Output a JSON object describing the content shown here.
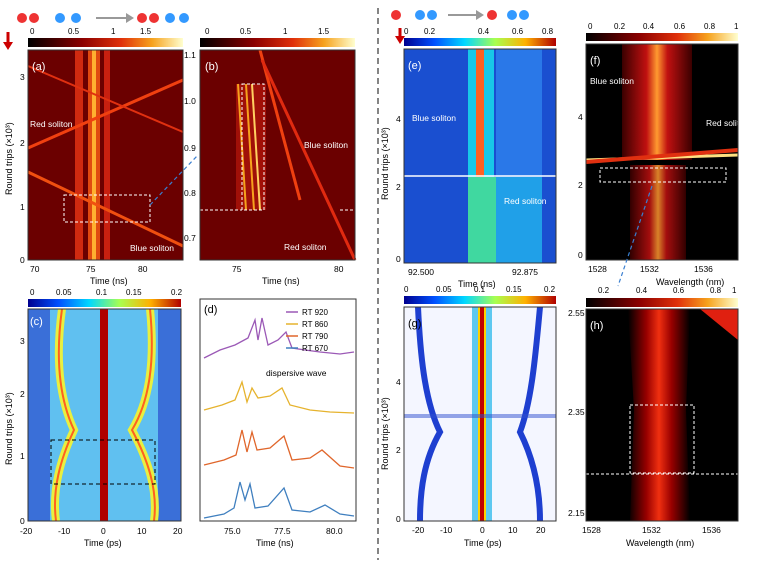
{
  "figure": {
    "panels": {
      "a": {
        "label": "(a)",
        "xlabel": "Time (ns)",
        "xticks": [
          "70",
          "75",
          "80"
        ],
        "ylabel": "Round trips (×10³)",
        "yticks": [
          "0",
          "1",
          "2",
          "3"
        ],
        "annotations": [
          "Red soliton",
          "Blue soliton"
        ]
      },
      "b": {
        "label": "(b)",
        "xlabel": "Time (ns)",
        "xticks": [
          "75",
          "80"
        ],
        "yticks": [
          "0.7",
          "0.8",
          "0.9",
          "1.0",
          "1.1"
        ],
        "annotations": [
          "Blue soliton",
          "Red soliton"
        ]
      },
      "c": {
        "label": "(c)",
        "xlabel": "Time (ps)",
        "xticks": [
          "-20",
          "-10",
          "0",
          "10",
          "20"
        ],
        "ylabel": "Round trips (×10³)",
        "yticks": [
          "0",
          "1",
          "2",
          "3"
        ]
      },
      "d": {
        "label": "(d)",
        "xlabel": "Time (ns)",
        "xticks": [
          "75.0",
          "77.5",
          "80.0"
        ],
        "legend": [
          "RT 920",
          "RT 860",
          "RT 790",
          "RT 670"
        ],
        "annotations": [
          "dispersive wave"
        ]
      },
      "e": {
        "label": "(e)",
        "xlabel": "Time (ns)",
        "xticks": [
          "92.500",
          "92.875"
        ],
        "ylabel": "Round trips (×10³)",
        "yticks": [
          "0",
          "2",
          "4"
        ],
        "annotations": [
          "Blue soliton",
          "Red soliton"
        ]
      },
      "f": {
        "label": "(f)",
        "xlabel": "Wavelength (nm)",
        "xticks": [
          "1528",
          "1532",
          "1536"
        ],
        "yticks": [
          "0",
          "2",
          "4"
        ],
        "annotations": [
          "Blue soliton",
          "Red soliton"
        ]
      },
      "g": {
        "label": "(g)",
        "xlabel": "Time (ps)",
        "xticks": [
          "-20",
          "-10",
          "0",
          "10",
          "20"
        ],
        "ylabel": "Round trips (×10³)",
        "yticks": [
          "0",
          "2",
          "4"
        ]
      },
      "h": {
        "label": "(h)",
        "xlabel": "Wavelength (nm)",
        "xticks": [
          "1528",
          "1532",
          "1536"
        ],
        "yticks": [
          "2.15",
          "2.35",
          "2.55"
        ]
      }
    },
    "colorbars": {
      "ab": [
        "0",
        "0.5",
        "1",
        "1.5"
      ],
      "e": [
        "0",
        "0.2",
        "0.4",
        "0.6",
        "0.8"
      ],
      "f": [
        "0",
        "0.2",
        "0.4",
        "0.6",
        "0.8",
        "1"
      ],
      "c": [
        "0",
        "0.05",
        "0.1",
        "0.15",
        "0.2"
      ],
      "g": [
        "0",
        "0.05",
        "0.1",
        "0.15",
        "0.2"
      ],
      "h": [
        "0.2",
        "0.4",
        "0.6",
        "0.8",
        "1"
      ]
    },
    "legend_colors": {
      "RT 920": "#9b59b6",
      "RT 860": "#e6b32e",
      "RT 790": "#e0662b",
      "RT 670": "#3f7fbf"
    }
  }
}
